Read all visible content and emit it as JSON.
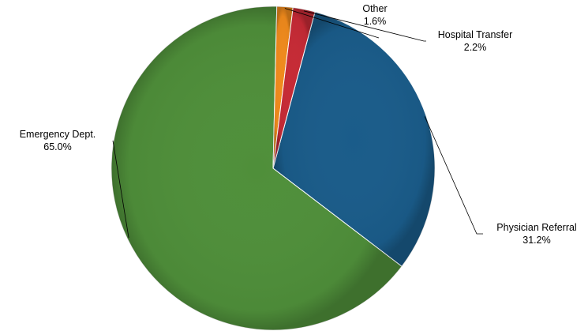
{
  "chart_data": {
    "type": "pie",
    "title": "",
    "slices": [
      {
        "name": "Physician Referral",
        "value": 31.2,
        "label": "31.2%",
        "color": "#1a5c8a"
      },
      {
        "name": "Emergency Dept.",
        "value": 65.0,
        "label": "65.0%",
        "color": "#4f8f3a"
      },
      {
        "name": "Other",
        "value": 1.6,
        "label": "1.6%",
        "color": "#f08a1c"
      },
      {
        "name": "Hospital Transfer",
        "value": 2.2,
        "label": "2.2%",
        "color": "#c62a35"
      }
    ],
    "legend": "none",
    "data_labels": "outside with leader lines"
  }
}
